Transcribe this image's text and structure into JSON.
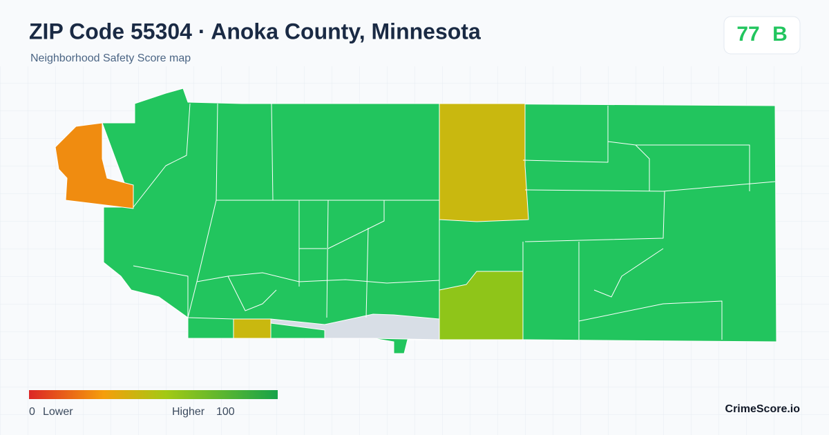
{
  "header": {
    "title": "ZIP Code 55304 · Anoka County, Minnesota",
    "subtitle": "Neighborhood Safety Score map"
  },
  "score_badge": {
    "score": 77,
    "grade": "B"
  },
  "legend": {
    "min": 0,
    "min_label": "Lower",
    "max_label": "Higher",
    "max": 100
  },
  "brand": "CrimeScore.io"
}
